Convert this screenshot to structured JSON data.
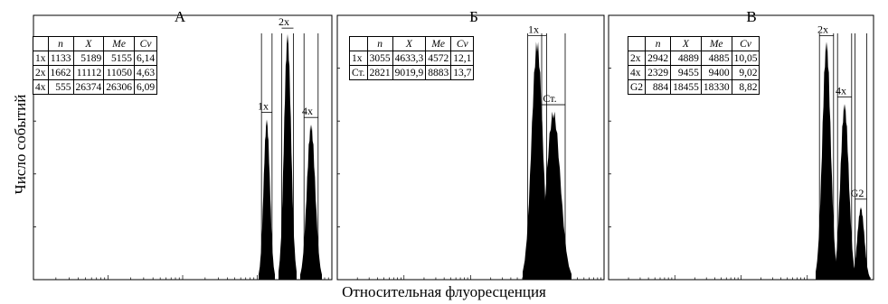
{
  "axis": {
    "ylabel": "Число событий",
    "xlabel": "Относительная флуоресценция"
  },
  "chart_data": [
    {
      "type": "histogram",
      "title": "А",
      "xscale": "log",
      "table": {
        "columns": [
          "",
          "n",
          "X",
          "Me",
          "Cv"
        ],
        "rows": [
          [
            "1x",
            "1133",
            "5189",
            "5155",
            "6,14"
          ],
          [
            "2x",
            "1662",
            "11112",
            "11050",
            "4,63"
          ],
          [
            "4x",
            "555",
            "26374",
            "26306",
            "6,09"
          ]
        ]
      },
      "peaks": [
        {
          "name": "1x",
          "label": "1x",
          "median": 5155,
          "relative_height": 0.62
        },
        {
          "name": "2x",
          "label": "2x",
          "median": 11050,
          "relative_height": 0.95
        },
        {
          "name": "4x",
          "label": "4x",
          "median": 26306,
          "relative_height": 0.6
        }
      ]
    },
    {
      "type": "histogram",
      "title": "Б",
      "xscale": "log",
      "table": {
        "columns": [
          "",
          "n",
          "X",
          "Me",
          "Cv"
        ],
        "rows": [
          [
            "1x",
            "3055",
            "4633,3",
            "4572",
            "12,1"
          ],
          [
            "Ст.",
            "2821",
            "9019,9",
            "8883",
            "13,7"
          ]
        ]
      },
      "peaks": [
        {
          "name": "1x",
          "label": "1x",
          "median": 4572,
          "relative_height": 0.92
        },
        {
          "name": "Ст.",
          "label": "Ст.",
          "median": 8883,
          "relative_height": 0.65
        }
      ]
    },
    {
      "type": "histogram",
      "title": "В",
      "xscale": "log",
      "table": {
        "columns": [
          "",
          "n",
          "X",
          "Me",
          "Cv"
        ],
        "rows": [
          [
            "2x",
            "2942",
            "4889",
            "4885",
            "10,05"
          ],
          [
            "4x",
            "2329",
            "9455",
            "9400",
            "9,02"
          ],
          [
            "G2",
            "884",
            "18455",
            "18330",
            "8,82"
          ]
        ]
      },
      "peaks": [
        {
          "name": "2x",
          "label": "2x",
          "median": 4885,
          "relative_height": 0.92
        },
        {
          "name": "4x",
          "label": "4x",
          "median": 9400,
          "relative_height": 0.68
        },
        {
          "name": "G2",
          "label": "G2",
          "median": 18330,
          "relative_height": 0.28
        }
      ]
    }
  ]
}
